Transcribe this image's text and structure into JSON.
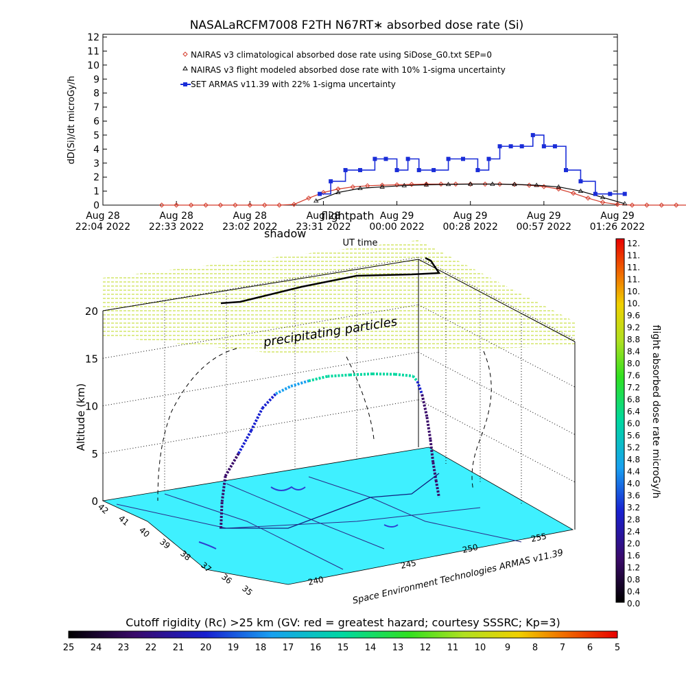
{
  "title": "NASALaRCFM7008  F2TH N67RT∗ absorbed dose rate (Si)",
  "top_chart": {
    "chart_data": {
      "type": "line",
      "ylabel": "dD(Si)/dt microGy/h",
      "xlabel": "UT time",
      "ylim": [
        0,
        12
      ],
      "y_ticks": [
        "0",
        "1",
        "2",
        "3",
        "4",
        "5",
        "6",
        "7",
        "8",
        "9",
        "10",
        "11",
        "12"
      ],
      "x_ticks": [
        {
          "l1": "Aug 28",
          "l2": "22:04 2022"
        },
        {
          "l1": "Aug 28",
          "l2": "22:33 2022"
        },
        {
          "l1": "Aug 28",
          "l2": "23:02 2022"
        },
        {
          "l1": "Aug 28",
          "l2": "23:31 2022"
        },
        {
          "l1": "Aug 29",
          "l2": "00:00 2022"
        },
        {
          "l1": "Aug 29",
          "l2": "00:28 2022"
        },
        {
          "l1": "Aug 29",
          "l2": "00:57 2022"
        },
        {
          "l1": "Aug 29",
          "l2": "01:26 2022"
        }
      ],
      "legend_placement": "top-left",
      "overlay_labels": [
        "shadow",
        "flightpath"
      ],
      "series": [
        {
          "name": "NAIRAS v3 climatological absorbed dose rate using SiDose_G0.txt SEP=0",
          "color": "#d43b2a",
          "marker": "diamond",
          "x": [
            0.8,
            1.0,
            1.2,
            1.4,
            1.6,
            1.8,
            2.0,
            2.2,
            2.4,
            2.6,
            2.8,
            3.0,
            3.2,
            3.4,
            3.6,
            3.8,
            4.0,
            4.2,
            4.4,
            4.6,
            4.8,
            5.0,
            5.2,
            5.4,
            5.6,
            5.8,
            6.0,
            6.2,
            6.4,
            6.6,
            6.8,
            7.0,
            7.2,
            7.4,
            7.6,
            7.8,
            8.0,
            8.2,
            8.4,
            8.6,
            8.8,
            9.0,
            9.2
          ],
          "values": [
            0,
            0,
            0,
            0,
            0,
            0,
            0,
            0,
            0,
            0.05,
            0.5,
            0.9,
            1.15,
            1.3,
            1.38,
            1.42,
            1.45,
            1.48,
            1.5,
            1.5,
            1.5,
            1.5,
            1.5,
            1.5,
            1.48,
            1.42,
            1.32,
            1.15,
            0.85,
            0.5,
            0.2,
            0.05,
            0,
            0,
            0,
            0,
            0,
            0,
            0,
            0,
            0,
            0,
            0
          ]
        },
        {
          "name": "NAIRAS v3 flight modeled absorbed dose rate with 10% 1-sigma uncertainty",
          "color": "#000000",
          "marker": "triangle",
          "x": [
            2.9,
            3.2,
            3.5,
            3.8,
            4.1,
            4.4,
            4.7,
            5.0,
            5.3,
            5.6,
            5.9,
            6.2,
            6.5,
            6.8,
            7.1
          ],
          "values": [
            0.3,
            0.9,
            1.2,
            1.3,
            1.4,
            1.45,
            1.48,
            1.5,
            1.5,
            1.48,
            1.42,
            1.3,
            1.0,
            0.55,
            0.1
          ]
        },
        {
          "name": "SET ARMAS v11.39 with 22% 1-sigma uncertainty",
          "color": "#1a2dd8",
          "marker": "square",
          "x": [
            2.95,
            3.1,
            3.3,
            3.5,
            3.7,
            3.85,
            4.0,
            4.15,
            4.3,
            4.5,
            4.7,
            4.9,
            5.1,
            5.25,
            5.4,
            5.55,
            5.7,
            5.85,
            6.0,
            6.15,
            6.3,
            6.5,
            6.7,
            6.9,
            7.1
          ],
          "values": [
            0.8,
            1.7,
            2.5,
            2.5,
            3.3,
            3.3,
            2.5,
            3.3,
            2.5,
            2.5,
            3.3,
            3.3,
            2.5,
            3.3,
            4.2,
            4.2,
            4.2,
            5.0,
            4.2,
            4.2,
            2.5,
            1.7,
            0.8,
            0.8,
            0.8
          ]
        }
      ]
    }
  },
  "bottom_chart": {
    "chart_data": {
      "type": "scatter",
      "zlabel": "Altitude (km)",
      "z_ticks": [
        "0",
        "5",
        "10",
        "15",
        "20"
      ],
      "lat_ticks": [
        "42",
        "41",
        "40",
        "39",
        "38",
        "37",
        "36",
        "35"
      ],
      "lon_ticks": [
        "240",
        "245",
        "250",
        "255"
      ],
      "credit": "Space Environment Technologies ARMAS v11.39",
      "annotation": "precipitating particles",
      "flight_path_km": {
        "progress": [
          0.0,
          0.05,
          0.1,
          0.15,
          0.2,
          0.25,
          0.3,
          0.35,
          0.4,
          0.45,
          0.5,
          0.55,
          0.6,
          0.65,
          0.7,
          0.75,
          0.8,
          0.85,
          0.9,
          0.95,
          1.0
        ],
        "altitude": [
          0.0,
          1.5,
          3.5,
          5.5,
          7.5,
          9.5,
          11.0,
          11.8,
          12.5,
          13.0,
          13.4,
          13.6,
          13.6,
          13.5,
          12.0,
          10.0,
          8.0,
          6.0,
          4.0,
          2.5,
          1.0
        ],
        "dose_rate": [
          0.5,
          0.8,
          1.2,
          1.6,
          2.0,
          2.6,
          3.4,
          3.8,
          4.2,
          4.6,
          4.8,
          5.0,
          4.8,
          4.4,
          2.4,
          1.2,
          0.8,
          0.6,
          0.6,
          0.8,
          1.0
        ]
      }
    },
    "colorbar_right": {
      "label": "flight absorbed dose rate microGy/h",
      "ticks": [
        "12.",
        "11.",
        "11.",
        "11.",
        "10.",
        "10.",
        "9.6",
        "9.2",
        "8.8",
        "8.4",
        "8.0",
        "7.6",
        "7.2",
        "6.8",
        "6.4",
        "6.0",
        "5.6",
        "5.2",
        "4.8",
        "4.4",
        "4.0",
        "3.6",
        "3.2",
        "2.8",
        "2.4",
        "2.0",
        "1.6",
        "1.2",
        "0.8",
        "0.4",
        "0.0"
      ]
    },
    "colorbar_bottom": {
      "label": "Cutoff rigidity (Rc) >25 km (GV: red = greatest hazard; courtesy SSSRC; Kp=3)",
      "ticks": [
        "25",
        "24",
        "23",
        "22",
        "21",
        "20",
        "19",
        "18",
        "17",
        "16",
        "15",
        "14",
        "13",
        "12",
        "11",
        "10",
        "9",
        "8",
        "7",
        "6",
        "5"
      ]
    }
  }
}
